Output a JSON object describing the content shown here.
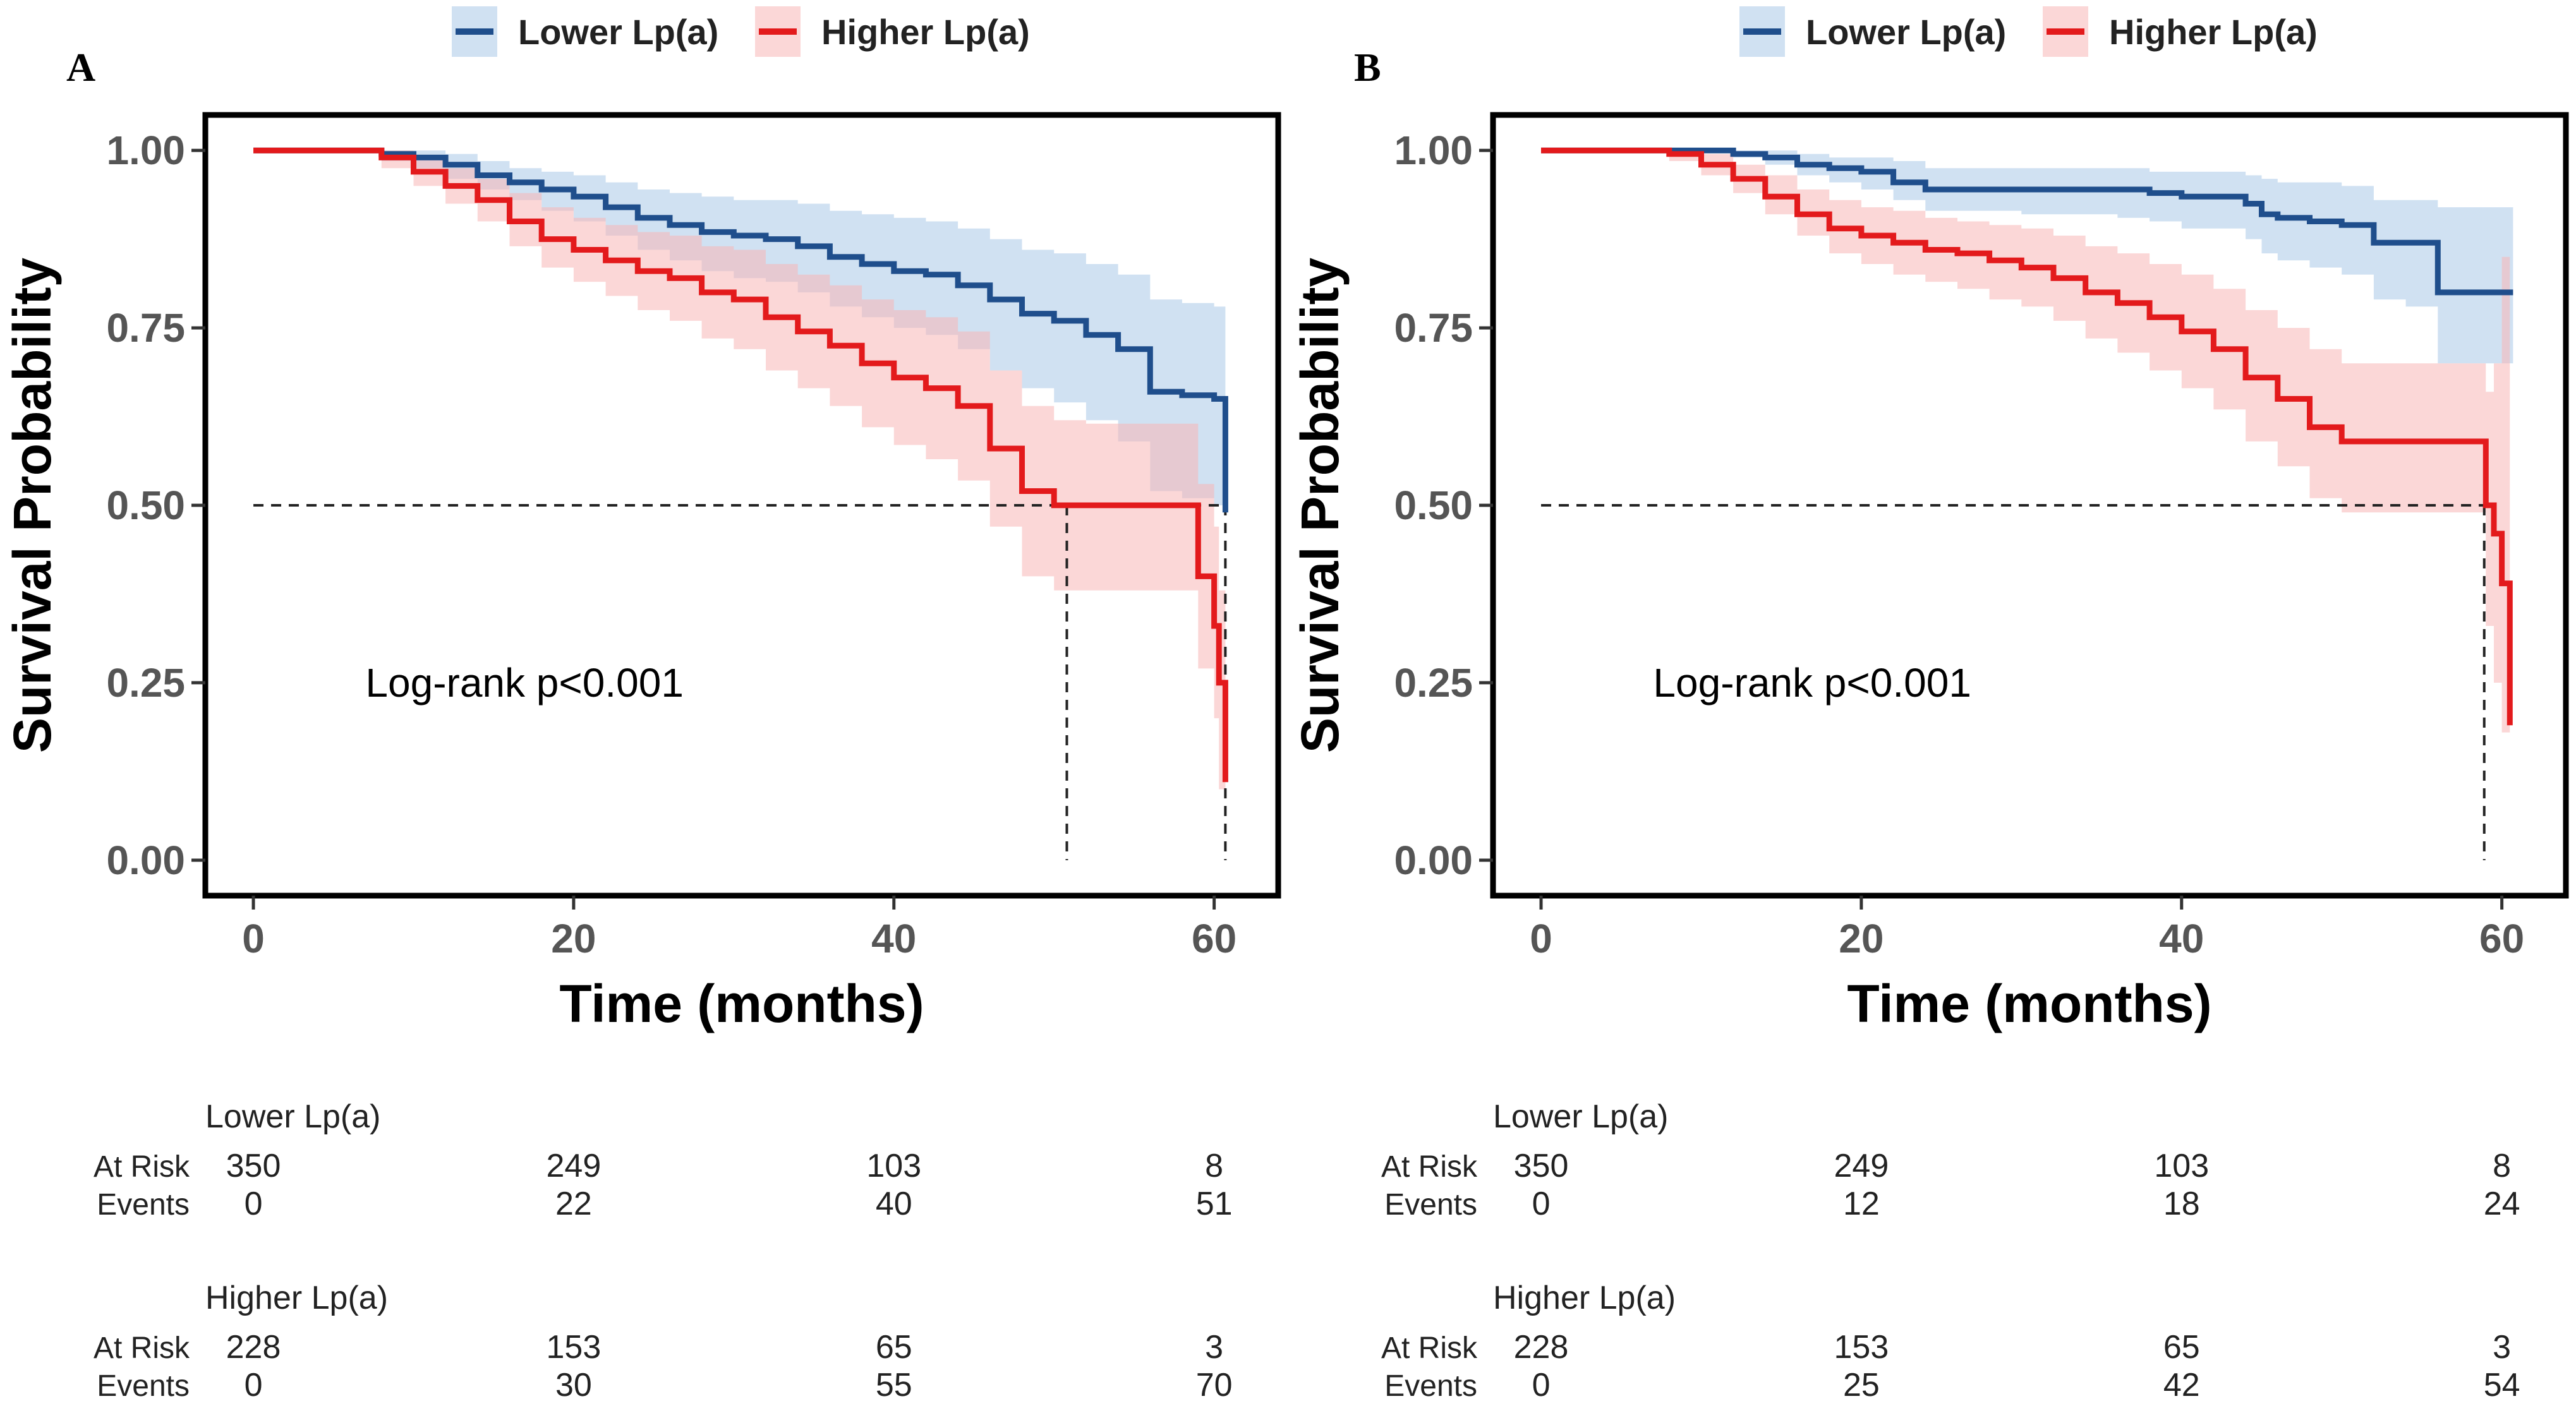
{
  "chart_data": [
    {
      "panel_letter": "A",
      "type": "line",
      "subtype": "kaplan-meier",
      "legend": [
        "Lower Lp(a)",
        "Higher Lp(a)"
      ],
      "legend_placement": "top-center",
      "xlabel": "Time (months)",
      "ylabel": "Survival Probability",
      "xlim": [
        -3,
        64
      ],
      "ylim": [
        -0.05,
        1.05
      ],
      "xticks": [
        0,
        20,
        40,
        60
      ],
      "xtick_labels": [
        "0",
        "20",
        "40",
        "60"
      ],
      "yticks": [
        0,
        0.25,
        0.5,
        0.75,
        1
      ],
      "ytick_labels": [
        "0.00",
        "0.25",
        "0.50",
        "0.75",
        "1.00"
      ],
      "annotation": "Log-rank p<0.001",
      "median_line": {
        "y": 0.5,
        "median_x": [
          50.8,
          60.7
        ]
      },
      "series": [
        {
          "name": "Lower Lp(a)",
          "color": "#1f4e8c",
          "band_color": "#a9c8e8",
          "x": [
            0,
            6,
            8,
            10,
            12,
            14,
            16,
            18,
            20,
            22,
            24,
            26,
            28,
            30,
            32,
            34,
            36,
            38,
            40,
            42,
            44,
            46,
            48,
            50,
            52,
            54,
            56,
            58,
            60,
            60.7
          ],
          "y": [
            1,
            1,
            0.995,
            0.99,
            0.98,
            0.965,
            0.955,
            0.945,
            0.935,
            0.92,
            0.905,
            0.895,
            0.885,
            0.88,
            0.875,
            0.865,
            0.85,
            0.84,
            0.83,
            0.825,
            0.81,
            0.79,
            0.77,
            0.76,
            0.74,
            0.72,
            0.66,
            0.655,
            0.65,
            0.49
          ],
          "lower": [
            1,
            1,
            0.985,
            0.975,
            0.96,
            0.945,
            0.93,
            0.915,
            0.9,
            0.88,
            0.86,
            0.845,
            0.83,
            0.82,
            0.815,
            0.8,
            0.78,
            0.765,
            0.75,
            0.74,
            0.72,
            0.69,
            0.665,
            0.645,
            0.62,
            0.59,
            0.52,
            0.51,
            0.5,
            0.35
          ],
          "upper": [
            1,
            1,
            1,
            1,
            0.995,
            0.985,
            0.975,
            0.97,
            0.965,
            0.955,
            0.945,
            0.94,
            0.935,
            0.93,
            0.93,
            0.925,
            0.915,
            0.91,
            0.905,
            0.9,
            0.89,
            0.875,
            0.86,
            0.855,
            0.84,
            0.825,
            0.79,
            0.785,
            0.78,
            0.69
          ]
        },
        {
          "name": "Higher Lp(a)",
          "color": "#e31a1c",
          "band_color": "#f7b7b7",
          "x": [
            0,
            6,
            8,
            10,
            12,
            14,
            16,
            18,
            20,
            22,
            24,
            26,
            28,
            30,
            32,
            34,
            36,
            38,
            40,
            42,
            44,
            46,
            48,
            50,
            52,
            54,
            56,
            58,
            59,
            60,
            60.3,
            60.7
          ],
          "y": [
            1,
            1,
            0.99,
            0.97,
            0.95,
            0.93,
            0.9,
            0.875,
            0.86,
            0.845,
            0.83,
            0.82,
            0.8,
            0.79,
            0.765,
            0.745,
            0.725,
            0.7,
            0.68,
            0.665,
            0.64,
            0.58,
            0.52,
            0.5,
            0.5,
            0.5,
            0.5,
            0.5,
            0.4,
            0.33,
            0.25,
            0.11
          ],
          "lower": [
            1,
            1,
            0.975,
            0.95,
            0.925,
            0.9,
            0.865,
            0.835,
            0.815,
            0.795,
            0.775,
            0.76,
            0.735,
            0.72,
            0.69,
            0.665,
            0.64,
            0.61,
            0.585,
            0.565,
            0.535,
            0.47,
            0.4,
            0.38,
            0.38,
            0.38,
            0.38,
            0.38,
            0.27,
            0.2,
            0.1,
            0.01
          ],
          "upper": [
            1,
            1,
            1,
            0.99,
            0.975,
            0.96,
            0.94,
            0.92,
            0.905,
            0.895,
            0.885,
            0.88,
            0.865,
            0.86,
            0.84,
            0.825,
            0.81,
            0.79,
            0.775,
            0.765,
            0.745,
            0.69,
            0.64,
            0.62,
            0.615,
            0.615,
            0.615,
            0.615,
            0.53,
            0.47,
            0.38,
            0.2
          ]
        }
      ],
      "risk_table": {
        "time_points": [
          0,
          20,
          40,
          60
        ],
        "row_labels": [
          "At Risk",
          "Events"
        ],
        "groups": [
          {
            "name": "Lower Lp(a)",
            "at_risk": [
              "350",
              "249",
              "103",
              "8"
            ],
            "events": [
              "0",
              "22",
              "40",
              "51"
            ]
          },
          {
            "name": "Higher Lp(a)",
            "at_risk": [
              "228",
              "153",
              "65",
              "3"
            ],
            "events": [
              "0",
              "30",
              "55",
              "70"
            ]
          }
        ]
      }
    },
    {
      "panel_letter": "B",
      "type": "line",
      "subtype": "kaplan-meier",
      "legend": [
        "Lower Lp(a)",
        "Higher Lp(a)"
      ],
      "legend_placement": "top-center",
      "xlabel": "Time (months)",
      "ylabel": "Survival Probability",
      "xlim": [
        -3,
        64
      ],
      "ylim": [
        -0.05,
        1.05
      ],
      "xticks": [
        0,
        20,
        40,
        60
      ],
      "xtick_labels": [
        "0",
        "20",
        "40",
        "60"
      ],
      "yticks": [
        0,
        0.25,
        0.5,
        0.75,
        1
      ],
      "ytick_labels": [
        "0.00",
        "0.25",
        "0.50",
        "0.75",
        "1.00"
      ],
      "annotation": "Log-rank p<0.001",
      "median_line": {
        "y": 0.5,
        "median_x": [
          58.9
        ]
      },
      "series": [
        {
          "name": "Lower Lp(a)",
          "color": "#1f4e8c",
          "band_color": "#a9c8e8",
          "x": [
            0,
            6,
            10,
            12,
            14,
            16,
            18,
            20,
            22,
            24,
            30,
            36,
            38,
            40,
            44,
            45,
            46,
            48,
            50,
            52,
            54,
            56,
            58,
            60,
            60.7
          ],
          "y": [
            1,
            1,
            1,
            0.995,
            0.99,
            0.98,
            0.975,
            0.97,
            0.955,
            0.945,
            0.945,
            0.945,
            0.94,
            0.935,
            0.925,
            0.91,
            0.905,
            0.9,
            0.895,
            0.87,
            0.87,
            0.8,
            0.8,
            0.8,
            0.8
          ],
          "lower": [
            1,
            1,
            1,
            0.99,
            0.98,
            0.965,
            0.955,
            0.945,
            0.93,
            0.915,
            0.91,
            0.905,
            0.9,
            0.89,
            0.875,
            0.855,
            0.845,
            0.835,
            0.825,
            0.79,
            0.78,
            0.7,
            0.7,
            0.7,
            0.69
          ],
          "upper": [
            1,
            1,
            1,
            1,
            1,
            0.995,
            0.99,
            0.99,
            0.985,
            0.975,
            0.975,
            0.975,
            0.97,
            0.97,
            0.965,
            0.96,
            0.955,
            0.955,
            0.95,
            0.93,
            0.93,
            0.92,
            0.92,
            0.92,
            0.92
          ]
        },
        {
          "name": "Higher Lp(a)",
          "color": "#e31a1c",
          "band_color": "#f7b7b7",
          "x": [
            0,
            6,
            8,
            10,
            12,
            14,
            16,
            18,
            20,
            22,
            24,
            26,
            28,
            30,
            32,
            34,
            36,
            38,
            40,
            42,
            44,
            46,
            48,
            50,
            52,
            54,
            56,
            58,
            59,
            59.5,
            60,
            60.5
          ],
          "y": [
            1,
            1,
            0.995,
            0.98,
            0.96,
            0.935,
            0.91,
            0.89,
            0.88,
            0.87,
            0.86,
            0.855,
            0.845,
            0.835,
            0.82,
            0.8,
            0.785,
            0.765,
            0.745,
            0.72,
            0.68,
            0.65,
            0.61,
            0.59,
            0.59,
            0.59,
            0.59,
            0.59,
            0.5,
            0.46,
            0.39,
            0.19
          ],
          "lower": [
            1,
            1,
            0.985,
            0.965,
            0.94,
            0.91,
            0.88,
            0.855,
            0.84,
            0.825,
            0.815,
            0.805,
            0.79,
            0.78,
            0.76,
            0.735,
            0.715,
            0.69,
            0.665,
            0.635,
            0.59,
            0.555,
            0.51,
            0.49,
            0.49,
            0.49,
            0.49,
            0.49,
            0.33,
            0.25,
            0.18,
            0.05
          ],
          "upper": [
            1,
            1,
            1,
            0.995,
            0.98,
            0.965,
            0.945,
            0.93,
            0.92,
            0.915,
            0.905,
            0.9,
            0.895,
            0.89,
            0.88,
            0.865,
            0.855,
            0.84,
            0.825,
            0.805,
            0.775,
            0.75,
            0.72,
            0.7,
            0.7,
            0.7,
            0.7,
            0.7,
            0.66,
            0.7,
            0.85,
            0.85
          ]
        }
      ],
      "risk_table": {
        "time_points": [
          0,
          20,
          40,
          60
        ],
        "row_labels": [
          "At Risk",
          "Events"
        ],
        "groups": [
          {
            "name": "Lower Lp(a)",
            "at_risk": [
              "350",
              "249",
              "103",
              "8"
            ],
            "events": [
              "0",
              "12",
              "18",
              "24"
            ]
          },
          {
            "name": "Higher Lp(a)",
            "at_risk": [
              "228",
              "153",
              "65",
              "3"
            ],
            "events": [
              "0",
              "25",
              "42",
              "54"
            ]
          }
        ]
      }
    }
  ]
}
